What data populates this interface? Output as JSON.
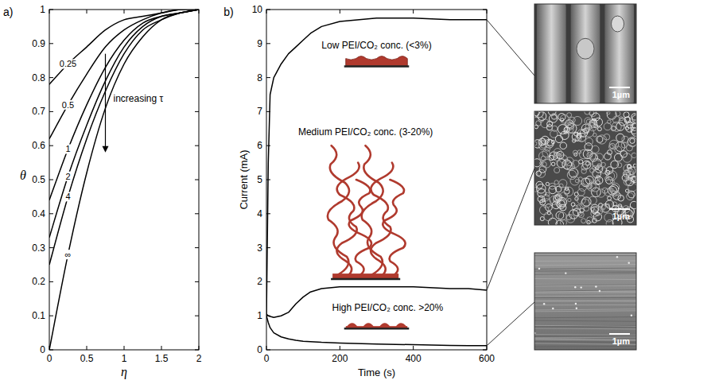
{
  "chart_data": [
    {
      "type": "line",
      "title": "a)",
      "x_label": "η",
      "y_label": "θ",
      "x": [
        0,
        0.25,
        0.5,
        0.75,
        1,
        1.25,
        1.5,
        1.75,
        2
      ],
      "series": [
        {
          "name": "0.25",
          "color": "#000000",
          "values": [
            0.78,
            0.84,
            0.89,
            0.94,
            0.97,
            0.98,
            0.99,
            1.0,
            1.0
          ]
        },
        {
          "name": "0.5",
          "color": "#000000",
          "values": [
            0.62,
            0.72,
            0.81,
            0.89,
            0.94,
            0.97,
            0.99,
            1.0,
            1.0
          ]
        },
        {
          "name": "1",
          "color": "#000000",
          "values": [
            0.44,
            0.59,
            0.72,
            0.83,
            0.91,
            0.96,
            0.98,
            0.99,
            1.0
          ]
        },
        {
          "name": "2",
          "color": "#000000",
          "values": [
            0.33,
            0.51,
            0.66,
            0.79,
            0.89,
            0.95,
            0.98,
            0.99,
            1.0
          ]
        },
        {
          "name": "4",
          "color": "#000000",
          "values": [
            0.25,
            0.45,
            0.62,
            0.76,
            0.87,
            0.94,
            0.97,
            0.99,
            1.0
          ]
        },
        {
          "name": "∞",
          "color": "#000000",
          "values": [
            0,
            0.28,
            0.52,
            0.71,
            0.84,
            0.92,
            0.97,
            0.99,
            1.0
          ]
        }
      ],
      "xlim": [
        0,
        2
      ],
      "xticks": [
        0,
        0.5,
        1,
        1.5,
        2
      ],
      "ylim": [
        0,
        1
      ],
      "yticks": [
        0,
        0.1,
        0.2,
        0.3,
        0.4,
        0.5,
        0.6,
        0.7,
        0.8,
        0.9,
        1
      ],
      "grid": false,
      "annotations": [
        {
          "text": "increasing τ"
        }
      ]
    },
    {
      "type": "line",
      "title": "b)",
      "x_label": "Time (s)",
      "y_label": "Current (mA)",
      "x": [
        0,
        5,
        10,
        20,
        40,
        60,
        80,
        100,
        120,
        150,
        200,
        300,
        400,
        500,
        550,
        600
      ],
      "series": [
        {
          "name": "Low PEI/CO₂ conc. (<3%)",
          "color": "#000000",
          "values": [
            1.0,
            5.5,
            7.5,
            8.0,
            8.4,
            8.7,
            8.9,
            9.1,
            9.3,
            9.5,
            9.65,
            9.75,
            9.75,
            9.7,
            9.7,
            9.7
          ]
        },
        {
          "name": "Medium PEI/CO₂ conc. (3-20%)",
          "color": "#000000",
          "values": [
            1.05,
            1.0,
            0.98,
            0.95,
            1.0,
            1.1,
            1.35,
            1.55,
            1.7,
            1.8,
            1.85,
            1.85,
            1.85,
            1.8,
            1.8,
            1.75
          ]
        },
        {
          "name": "High PEI/CO₂ conc. >20%",
          "color": "#000000",
          "values": [
            1.0,
            0.8,
            0.65,
            0.5,
            0.38,
            0.32,
            0.28,
            0.25,
            0.24,
            0.22,
            0.2,
            0.17,
            0.15,
            0.13,
            0.12,
            0.12
          ]
        }
      ],
      "xlim": [
        0,
        600
      ],
      "xticks": [
        0,
        200,
        400,
        600
      ],
      "ylim": [
        0,
        10
      ],
      "yticks": [
        0,
        1,
        2,
        3,
        4,
        5,
        6,
        7,
        8,
        9,
        10
      ],
      "grid": false
    }
  ],
  "micrographs": [
    {
      "scale_bar": "1µm"
    },
    {
      "scale_bar": "1µm"
    },
    {
      "scale_bar": "1µm"
    }
  ]
}
